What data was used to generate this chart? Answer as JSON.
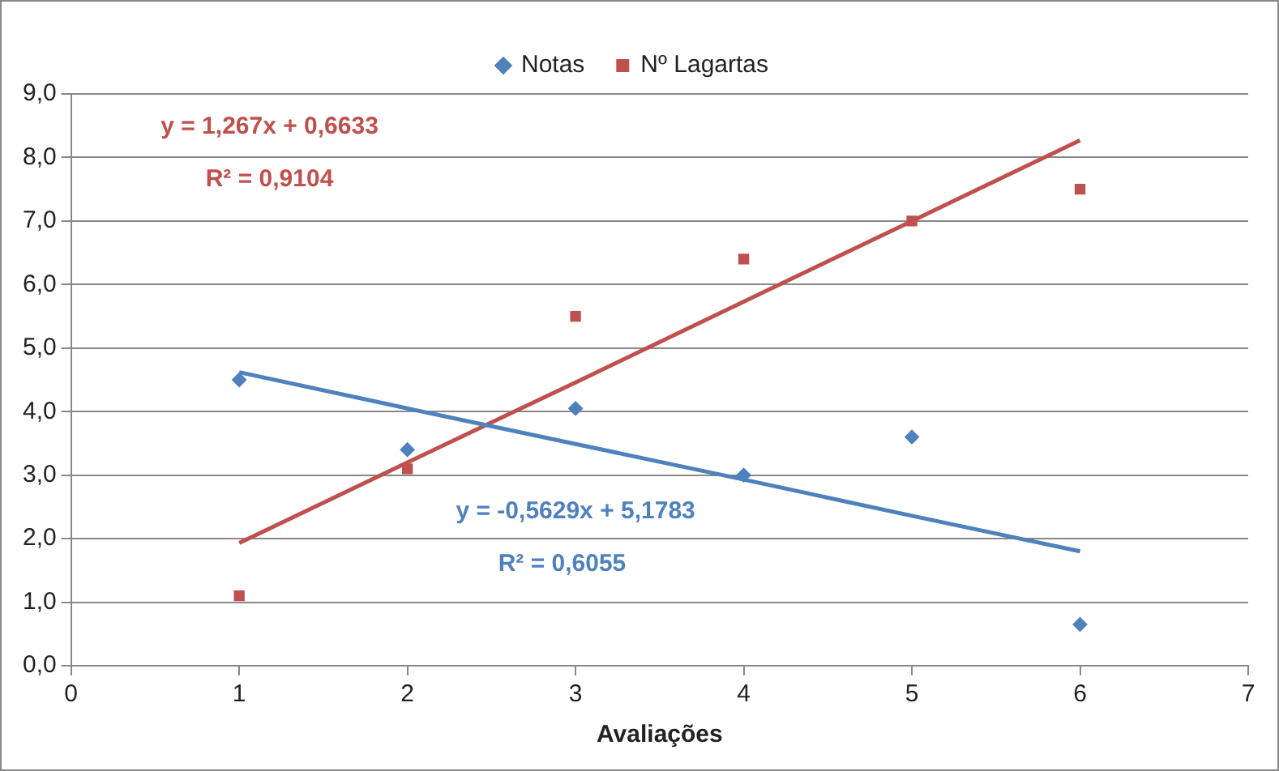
{
  "chart_data": {
    "type": "scatter",
    "xlabel": "Avaliações",
    "x": [
      1,
      2,
      3,
      4,
      5,
      6
    ],
    "series": [
      {
        "name": "Notas",
        "color": "#4f81bd",
        "marker": "diamond",
        "values": [
          4.5,
          3.4,
          4.05,
          3.0,
          3.6,
          0.65
        ]
      },
      {
        "name": "Nº Lagartas",
        "color": "#c0504d",
        "marker": "square",
        "values": [
          1.1,
          3.1,
          5.5,
          6.4,
          7.0,
          7.5
        ]
      },
      {
        "type": "line",
        "color": "#4f81bd",
        "marker": "none",
        "values": [
          4.62,
          4.05,
          3.49,
          2.93,
          2.36,
          1.8
        ]
      },
      {
        "type": "line",
        "color": "#c0504d",
        "marker": "none",
        "values": [
          1.93,
          3.2,
          4.46,
          5.73,
          7.0,
          8.27
        ]
      }
    ],
    "xlim": [
      0,
      7
    ],
    "xticks": [
      0,
      1,
      2,
      3,
      4,
      5,
      6,
      7
    ],
    "ylim": [
      0,
      9
    ],
    "yticks": [
      {
        "value": 0,
        "label": "0,0"
      },
      {
        "value": 1,
        "label": "1,0"
      },
      {
        "value": 2,
        "label": "2,0"
      },
      {
        "value": 3,
        "label": "3,0"
      },
      {
        "value": 4,
        "label": "4,0"
      },
      {
        "value": 5,
        "label": "5,0"
      },
      {
        "value": 6,
        "label": "6,0"
      },
      {
        "value": 7,
        "label": "7,0"
      },
      {
        "value": 8,
        "label": "8,0"
      },
      {
        "value": 9,
        "label": "9,0"
      }
    ],
    "grid": "y",
    "legend": "top",
    "annotations": [
      "y = 1,267x + 0,6633",
      "R² = 0,9104",
      "y = -0,5629x + 5,1783",
      "R² = 0,6055"
    ]
  }
}
